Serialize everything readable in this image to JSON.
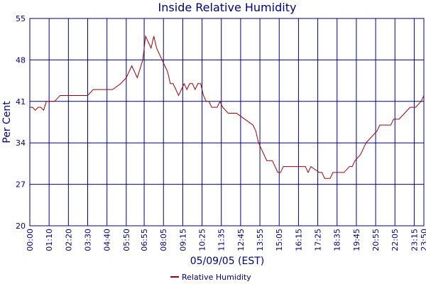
{
  "chart_data": {
    "type": "line",
    "title": "Inside Relative Humidity",
    "x_label": "05/09/05 (EST)",
    "y_label": "Per Cent",
    "x": [
      0,
      10,
      20,
      30,
      40,
      50,
      60,
      90,
      110,
      130,
      150,
      180,
      210,
      230,
      270,
      300,
      330,
      350,
      370,
      390,
      410,
      420,
      430,
      440,
      450,
      460,
      470,
      480,
      490,
      500,
      510,
      520,
      530,
      540,
      550,
      560,
      570,
      580,
      590,
      600,
      610,
      620,
      630,
      640,
      650,
      660,
      670,
      680,
      690,
      700,
      720,
      750,
      780,
      810,
      820,
      830,
      840,
      860,
      870,
      880,
      900,
      910,
      920,
      940,
      960,
      980,
      1000,
      1010,
      1020,
      1050,
      1060,
      1070,
      1090,
      1100,
      1120,
      1140,
      1160,
      1170,
      1180,
      1200,
      1210,
      1220,
      1240,
      1260,
      1270,
      1290,
      1310,
      1320,
      1340,
      1360,
      1380,
      1400,
      1420,
      1430
    ],
    "series": [
      {
        "name": "Relative Humidity",
        "color": "#a00000",
        "values": [
          40,
          40,
          39.5,
          40,
          40,
          39.5,
          41,
          41,
          42,
          42,
          42,
          42,
          42,
          43,
          43,
          43,
          44,
          45,
          47,
          45,
          48,
          52,
          51,
          50,
          52,
          50,
          49,
          48,
          47,
          46,
          44,
          44,
          43,
          42,
          43,
          44,
          43,
          44,
          44,
          43,
          44,
          44,
          42,
          41,
          41,
          40,
          40,
          40,
          41,
          40,
          39,
          39,
          38,
          37,
          36,
          34,
          33,
          31,
          31,
          31,
          29,
          29,
          30,
          30,
          30,
          30,
          30,
          29,
          30,
          29,
          29,
          28,
          28,
          29,
          29,
          29,
          30,
          30,
          31,
          32,
          33,
          34,
          35,
          36,
          37,
          37,
          37,
          38,
          38,
          39,
          40,
          40,
          41,
          42
        ]
      }
    ],
    "xlim": [
      0,
      1430
    ],
    "xticks": [
      {
        "value": 0,
        "label": "00:00"
      },
      {
        "value": 70,
        "label": "01:10"
      },
      {
        "value": 140,
        "label": "02:20"
      },
      {
        "value": 210,
        "label": "03:30"
      },
      {
        "value": 280,
        "label": "04:40"
      },
      {
        "value": 350,
        "label": "05:50"
      },
      {
        "value": 415,
        "label": "06:55"
      },
      {
        "value": 485,
        "label": "08:05"
      },
      {
        "value": 555,
        "label": "09:15"
      },
      {
        "value": 625,
        "label": "10:25"
      },
      {
        "value": 695,
        "label": "11:35"
      },
      {
        "value": 765,
        "label": "12:45"
      },
      {
        "value": 835,
        "label": "13:55"
      },
      {
        "value": 905,
        "label": "15:05"
      },
      {
        "value": 975,
        "label": "16:15"
      },
      {
        "value": 1045,
        "label": "17:25"
      },
      {
        "value": 1115,
        "label": "18:35"
      },
      {
        "value": 1185,
        "label": "19:45"
      },
      {
        "value": 1255,
        "label": "20:55"
      },
      {
        "value": 1325,
        "label": "22:05"
      },
      {
        "value": 1395,
        "label": "23:15"
      },
      {
        "value": 1430,
        "label": "23:50"
      }
    ],
    "ylim": [
      20,
      55
    ],
    "yticks": [
      20,
      27,
      34,
      41,
      48,
      55
    ],
    "grid": true
  }
}
